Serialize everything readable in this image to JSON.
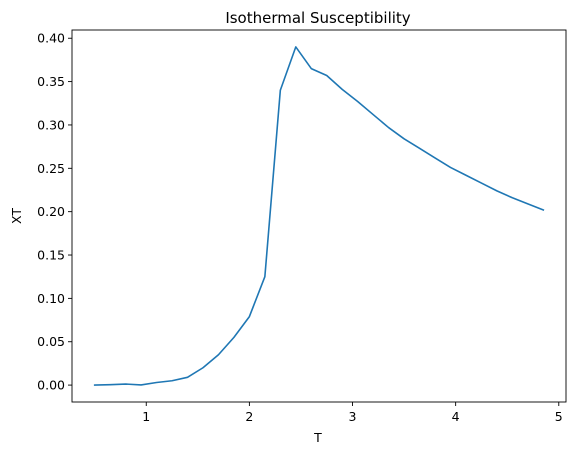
{
  "chart_data": {
    "type": "line",
    "title": "Isothermal Susceptibility",
    "xlabel": "T",
    "ylabel": "XT",
    "xlim": [
      0.28,
      5.07
    ],
    "ylim": [
      -0.0195,
      0.4095
    ],
    "x_ticks": [
      1,
      2,
      3,
      4,
      5
    ],
    "x_tick_labels": [
      "1",
      "2",
      "3",
      "4",
      "5"
    ],
    "y_ticks": [
      0.0,
      0.05,
      0.1,
      0.15,
      0.2,
      0.25,
      0.3,
      0.35,
      0.4
    ],
    "y_tick_labels": [
      "0.00",
      "0.05",
      "0.10",
      "0.15",
      "0.20",
      "0.25",
      "0.30",
      "0.35",
      "0.40"
    ],
    "grid": false,
    "series": [
      {
        "color": "#1f77b4",
        "x": [
          0.5,
          0.65,
          0.8,
          0.95,
          1.1,
          1.25,
          1.4,
          1.55,
          1.7,
          1.85,
          2.0,
          2.15,
          2.3,
          2.45,
          2.6,
          2.75,
          2.9,
          3.05,
          3.2,
          3.35,
          3.5,
          3.65,
          3.8,
          3.95,
          4.1,
          4.25,
          4.4,
          4.55,
          4.7,
          4.85
        ],
        "y": [
          0.0,
          0.0005,
          0.0012,
          0.0002,
          0.003,
          0.005,
          0.009,
          0.02,
          0.035,
          0.055,
          0.079,
          0.125,
          0.34,
          0.39,
          0.365,
          0.357,
          0.341,
          0.327,
          0.312,
          0.297,
          0.284,
          0.273,
          0.262,
          0.251,
          0.242,
          0.233,
          0.224,
          0.216,
          0.209,
          0.202
        ]
      }
    ]
  }
}
